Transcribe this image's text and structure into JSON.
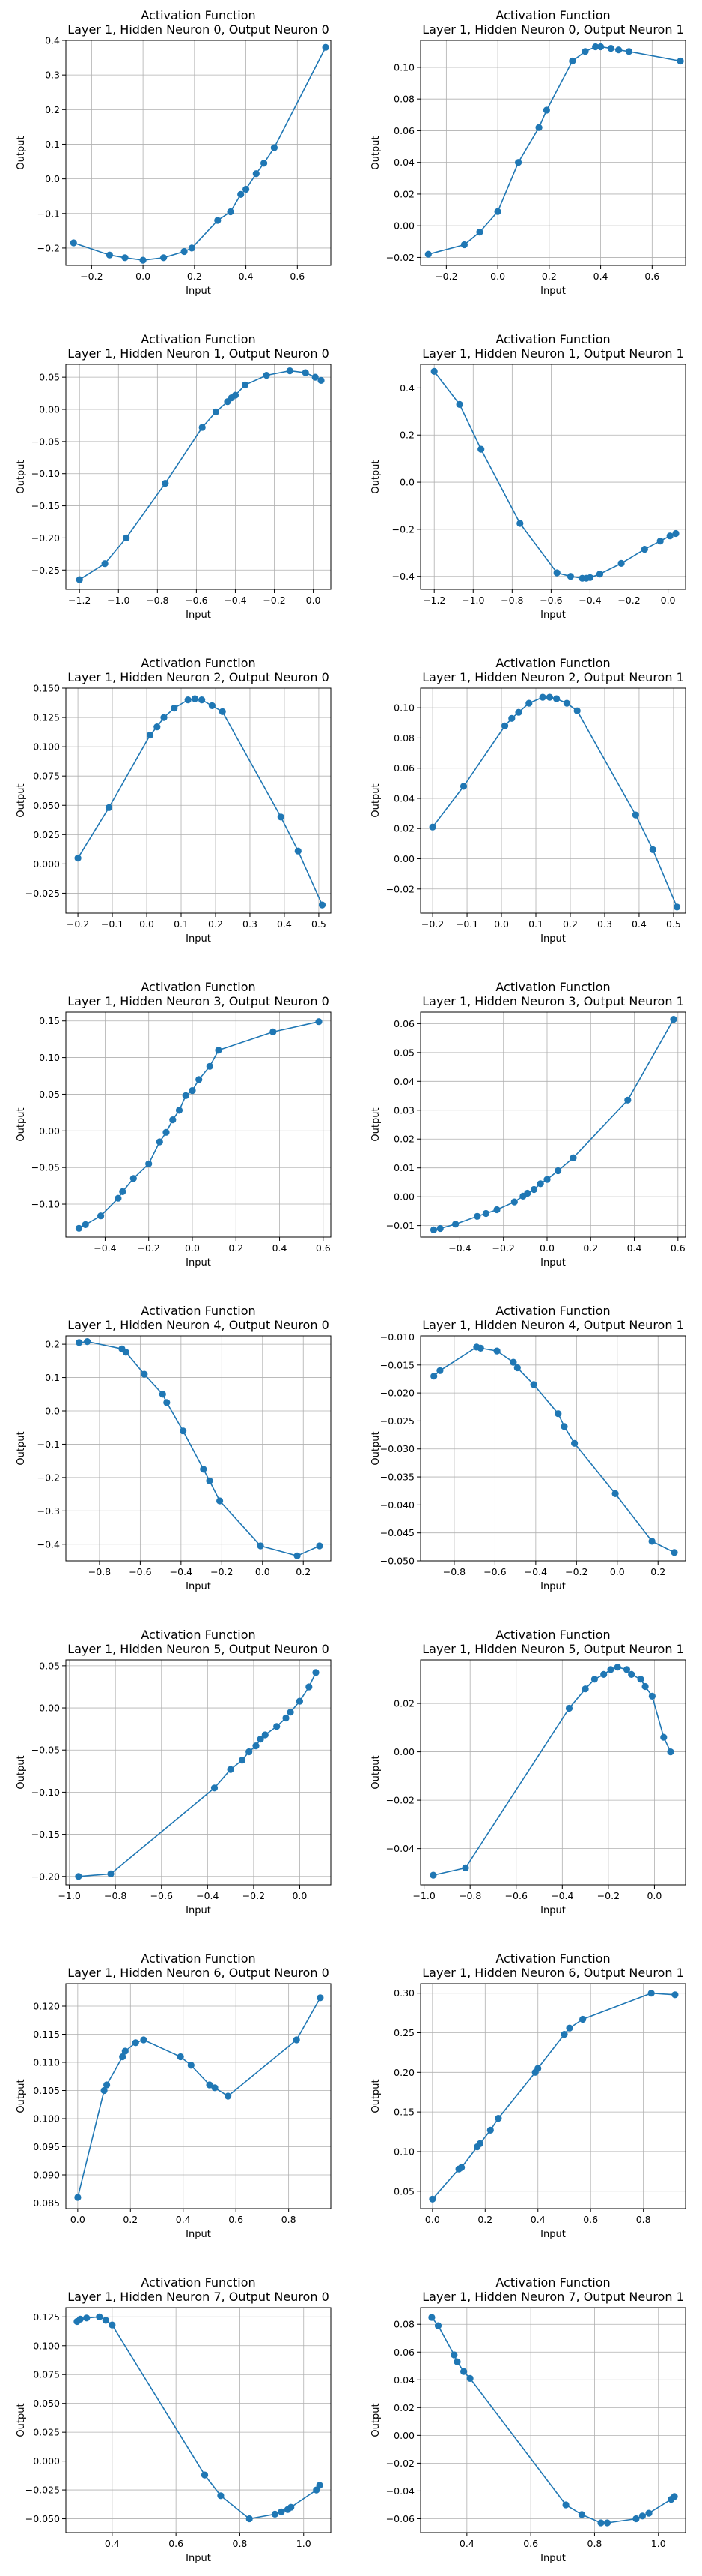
{
  "style": {
    "line_color": "#1f77b4",
    "grid_color": "#b0b0b0",
    "axis_color": "#000000"
  },
  "chart_data": [
    {
      "type": "line",
      "title": "Activation Function\nLayer 1, Hidden Neuron 0, Output Neuron 0",
      "xlabel": "Input",
      "ylabel": "Output",
      "xlim": [
        -0.3,
        0.73
      ],
      "ylim": [
        -0.25,
        0.4
      ],
      "xticks": [
        -0.2,
        0.0,
        0.2,
        0.4,
        0.6
      ],
      "yticks": [
        -0.2,
        -0.1,
        0.0,
        0.1,
        0.2,
        0.3,
        0.4
      ],
      "x": [
        -0.27,
        -0.13,
        -0.07,
        0.0,
        0.08,
        0.16,
        0.19,
        0.29,
        0.34,
        0.38,
        0.4,
        0.44,
        0.47,
        0.51,
        0.71
      ],
      "y": [
        -0.185,
        -0.22,
        -0.228,
        -0.235,
        -0.228,
        -0.21,
        -0.2,
        -0.12,
        -0.095,
        -0.045,
        -0.03,
        0.015,
        0.045,
        0.09,
        0.38
      ]
    },
    {
      "type": "line",
      "title": "Activation Function\nLayer 1, Hidden Neuron 0, Output Neuron 1",
      "xlabel": "Input",
      "ylabel": "Output",
      "xlim": [
        -0.3,
        0.73
      ],
      "ylim": [
        -0.025,
        0.117
      ],
      "xticks": [
        -0.2,
        0.0,
        0.2,
        0.4,
        0.6
      ],
      "yticks": [
        -0.02,
        0.0,
        0.02,
        0.04,
        0.06,
        0.08,
        0.1
      ],
      "x": [
        -0.27,
        -0.13,
        -0.07,
        0.0,
        0.08,
        0.16,
        0.19,
        0.29,
        0.34,
        0.38,
        0.4,
        0.44,
        0.47,
        0.51,
        0.71
      ],
      "y": [
        -0.018,
        -0.012,
        -0.004,
        0.009,
        0.04,
        0.062,
        0.073,
        0.104,
        0.11,
        0.113,
        0.113,
        0.112,
        0.111,
        0.11,
        0.104
      ]
    },
    {
      "type": "line",
      "title": "Activation Function\nLayer 1, Hidden Neuron 1, Output Neuron 0",
      "xlabel": "Input",
      "ylabel": "Output",
      "xlim": [
        -1.27,
        0.09
      ],
      "ylim": [
        -0.28,
        0.07
      ],
      "xticks": [
        -1.2,
        -1.0,
        -0.8,
        -0.6,
        -0.4,
        -0.2,
        0.0
      ],
      "yticks": [
        -0.25,
        -0.2,
        -0.15,
        -0.1,
        -0.05,
        0.0,
        0.05
      ],
      "x": [
        -1.2,
        -1.07,
        -0.96,
        -0.76,
        -0.57,
        -0.5,
        -0.44,
        -0.42,
        -0.4,
        -0.35,
        -0.24,
        -0.12,
        -0.04,
        0.01,
        0.04
      ],
      "y": [
        -0.265,
        -0.24,
        -0.2,
        -0.115,
        -0.028,
        -0.004,
        0.012,
        0.018,
        0.022,
        0.038,
        0.053,
        0.06,
        0.057,
        0.05,
        0.045
      ]
    },
    {
      "type": "line",
      "title": "Activation Function\nLayer 1, Hidden Neuron 1, Output Neuron 1",
      "xlabel": "Input",
      "ylabel": "Output",
      "xlim": [
        -1.27,
        0.09
      ],
      "ylim": [
        -0.455,
        0.5
      ],
      "xticks": [
        -1.2,
        -1.0,
        -0.8,
        -0.6,
        -0.4,
        -0.2,
        0.0
      ],
      "yticks": [
        -0.4,
        -0.2,
        0.0,
        0.2,
        0.4
      ],
      "x": [
        -1.2,
        -1.07,
        -0.96,
        -0.76,
        -0.57,
        -0.5,
        -0.44,
        -0.42,
        -0.4,
        -0.35,
        -0.24,
        -0.12,
        -0.04,
        0.01,
        0.04
      ],
      "y": [
        0.47,
        0.33,
        0.14,
        -0.175,
        -0.385,
        -0.4,
        -0.408,
        -0.408,
        -0.405,
        -0.39,
        -0.345,
        -0.285,
        -0.25,
        -0.228,
        -0.218
      ]
    },
    {
      "type": "line",
      "title": "Activation Function\nLayer 1, Hidden Neuron 2, Output Neuron 0",
      "xlabel": "Input",
      "ylabel": "Output",
      "xlim": [
        -0.235,
        0.535
      ],
      "ylim": [
        -0.042,
        0.15
      ],
      "xticks": [
        -0.2,
        -0.1,
        0.0,
        0.1,
        0.2,
        0.3,
        0.4,
        0.5
      ],
      "yticks": [
        -0.025,
        0.0,
        0.025,
        0.05,
        0.075,
        0.1,
        0.125,
        0.15
      ],
      "x": [
        -0.2,
        -0.11,
        0.01,
        0.03,
        0.05,
        0.08,
        0.12,
        0.14,
        0.16,
        0.19,
        0.22,
        0.39,
        0.44,
        0.51
      ],
      "y": [
        0.005,
        0.048,
        0.11,
        0.117,
        0.125,
        0.133,
        0.14,
        0.141,
        0.14,
        0.135,
        0.13,
        0.04,
        0.011,
        -0.035
      ]
    },
    {
      "type": "line",
      "title": "Activation Function\nLayer 1, Hidden Neuron 2, Output Neuron 1",
      "xlabel": "Input",
      "ylabel": "Output",
      "xlim": [
        -0.235,
        0.535
      ],
      "ylim": [
        -0.036,
        0.113
      ],
      "xticks": [
        -0.2,
        -0.1,
        0.0,
        0.1,
        0.2,
        0.3,
        0.4,
        0.5
      ],
      "yticks": [
        -0.02,
        0.0,
        0.02,
        0.04,
        0.06,
        0.08,
        0.1
      ],
      "x": [
        -0.2,
        -0.11,
        0.01,
        0.03,
        0.05,
        0.08,
        0.12,
        0.14,
        0.16,
        0.19,
        0.22,
        0.39,
        0.44,
        0.51
      ],
      "y": [
        0.021,
        0.048,
        0.088,
        0.093,
        0.097,
        0.103,
        0.107,
        0.107,
        0.106,
        0.103,
        0.098,
        0.029,
        0.006,
        -0.032
      ]
    },
    {
      "type": "line",
      "title": "Activation Function\nLayer 1, Hidden Neuron 3, Output Neuron 0",
      "xlabel": "Input",
      "ylabel": "Output",
      "xlim": [
        -0.58,
        0.635
      ],
      "ylim": [
        -0.145,
        0.162
      ],
      "xticks": [
        -0.4,
        -0.2,
        0.0,
        0.2,
        0.4,
        0.6
      ],
      "yticks": [
        -0.1,
        -0.05,
        0.0,
        0.05,
        0.1,
        0.15
      ],
      "x": [
        -0.52,
        -0.49,
        -0.42,
        -0.34,
        -0.32,
        -0.27,
        -0.2,
        -0.15,
        -0.12,
        -0.09,
        -0.06,
        -0.03,
        0.0,
        0.03,
        0.08,
        0.12,
        0.37,
        0.58
      ],
      "y": [
        -0.133,
        -0.128,
        -0.116,
        -0.092,
        -0.083,
        -0.065,
        -0.045,
        -0.015,
        -0.002,
        0.015,
        0.028,
        0.048,
        0.055,
        0.07,
        0.088,
        0.11,
        0.135,
        0.149
      ]
    },
    {
      "type": "line",
      "title": "Activation Function\nLayer 1, Hidden Neuron 3, Output Neuron 1",
      "xlabel": "Input",
      "ylabel": "Output",
      "xlim": [
        -0.58,
        0.635
      ],
      "ylim": [
        -0.014,
        0.064
      ],
      "xticks": [
        -0.4,
        -0.2,
        0.0,
        0.2,
        0.4,
        0.6
      ],
      "yticks": [
        -0.01,
        0.0,
        0.01,
        0.02,
        0.03,
        0.04,
        0.05,
        0.06
      ],
      "x": [
        -0.52,
        -0.49,
        -0.42,
        -0.32,
        -0.28,
        -0.23,
        -0.15,
        -0.11,
        -0.09,
        -0.06,
        -0.03,
        0.0,
        0.05,
        0.12,
        0.37,
        0.58
      ],
      "y": [
        -0.0115,
        -0.011,
        -0.0095,
        -0.0068,
        -0.0058,
        -0.0045,
        -0.0018,
        0.0002,
        0.0012,
        0.0025,
        0.0045,
        0.006,
        0.009,
        0.0135,
        0.0335,
        0.0615
      ]
    },
    {
      "type": "line",
      "title": "Activation Function\nLayer 1, Hidden Neuron 4, Output Neuron 0",
      "xlabel": "Input",
      "ylabel": "Output",
      "xlim": [
        -0.965,
        0.335
      ],
      "ylim": [
        -0.45,
        0.225
      ],
      "xticks": [
        -0.8,
        -0.6,
        -0.4,
        -0.2,
        0.0,
        0.2
      ],
      "yticks": [
        -0.4,
        -0.3,
        -0.2,
        -0.1,
        0.0,
        0.1,
        0.2
      ],
      "x": [
        -0.9,
        -0.86,
        -0.69,
        -0.67,
        -0.58,
        -0.49,
        -0.47,
        -0.39,
        -0.29,
        -0.26,
        -0.21,
        -0.01,
        0.17,
        0.28
      ],
      "y": [
        0.205,
        0.208,
        0.186,
        0.176,
        0.11,
        0.05,
        0.025,
        -0.06,
        -0.175,
        -0.21,
        -0.27,
        -0.405,
        -0.435,
        -0.405
      ]
    },
    {
      "type": "line",
      "title": "Activation Function\nLayer 1, Hidden Neuron 4, Output Neuron 1",
      "xlabel": "Input",
      "ylabel": "Output",
      "xlim": [
        -0.965,
        0.335
      ],
      "ylim": [
        -0.05,
        -0.0098
      ],
      "xticks": [
        -0.8,
        -0.6,
        -0.4,
        -0.2,
        0.0,
        0.2
      ],
      "yticks": [
        -0.05,
        -0.045,
        -0.04,
        -0.035,
        -0.03,
        -0.025,
        -0.02,
        -0.015,
        -0.01
      ],
      "x": [
        -0.9,
        -0.87,
        -0.69,
        -0.67,
        -0.59,
        -0.51,
        -0.49,
        -0.41,
        -0.29,
        -0.26,
        -0.21,
        -0.01,
        0.17,
        0.28
      ],
      "y": [
        -0.017,
        -0.016,
        -0.0118,
        -0.012,
        -0.0125,
        -0.0145,
        -0.0155,
        -0.0185,
        -0.0237,
        -0.026,
        -0.029,
        -0.038,
        -0.0465,
        -0.0485
      ]
    },
    {
      "type": "line",
      "title": "Activation Function\nLayer 1, Hidden Neuron 5, Output Neuron 0",
      "xlabel": "Input",
      "ylabel": "Output",
      "xlim": [
        -1.015,
        0.135
      ],
      "ylim": [
        -0.21,
        0.057
      ],
      "xticks": [
        -1.0,
        -0.8,
        -0.6,
        -0.4,
        -0.2,
        0.0
      ],
      "yticks": [
        -0.2,
        -0.15,
        -0.1,
        -0.05,
        0.0,
        0.05
      ],
      "x": [
        -0.96,
        -0.82,
        -0.37,
        -0.3,
        -0.25,
        -0.22,
        -0.19,
        -0.17,
        -0.15,
        -0.1,
        -0.06,
        -0.04,
        0.0,
        0.04,
        0.07
      ],
      "y": [
        -0.2,
        -0.197,
        -0.095,
        -0.073,
        -0.062,
        -0.052,
        -0.045,
        -0.037,
        -0.032,
        -0.022,
        -0.012,
        -0.005,
        0.008,
        0.025,
        0.042
      ]
    },
    {
      "type": "line",
      "title": "Activation Function\nLayer 1, Hidden Neuron 5, Output Neuron 1",
      "xlabel": "Input",
      "ylabel": "Output",
      "xlim": [
        -1.015,
        0.135
      ],
      "ylim": [
        -0.055,
        0.038
      ],
      "xticks": [
        -1.0,
        -0.8,
        -0.6,
        -0.4,
        -0.2,
        0.0
      ],
      "yticks": [
        -0.04,
        -0.02,
        0.0,
        0.02
      ],
      "x": [
        -0.96,
        -0.82,
        -0.37,
        -0.3,
        -0.26,
        -0.22,
        -0.19,
        -0.16,
        -0.12,
        -0.1,
        -0.06,
        -0.04,
        -0.01,
        0.04,
        0.07
      ],
      "y": [
        -0.051,
        -0.048,
        0.018,
        0.026,
        0.03,
        0.032,
        0.034,
        0.035,
        0.034,
        0.032,
        0.03,
        0.027,
        0.023,
        0.006,
        0.0
      ]
    },
    {
      "type": "line",
      "title": "Activation Function\nLayer 1, Hidden Neuron 6, Output Neuron 0",
      "xlabel": "Input",
      "ylabel": "Output",
      "xlim": [
        -0.045,
        0.96
      ],
      "ylim": [
        0.084,
        0.124
      ],
      "xticks": [
        0.0,
        0.2,
        0.4,
        0.6,
        0.8
      ],
      "yticks": [
        0.085,
        0.09,
        0.095,
        0.1,
        0.105,
        0.11,
        0.115,
        0.12
      ],
      "x": [
        0.0,
        0.1,
        0.11,
        0.17,
        0.18,
        0.22,
        0.25,
        0.39,
        0.43,
        0.5,
        0.52,
        0.57,
        0.83,
        0.92
      ],
      "y": [
        0.086,
        0.105,
        0.106,
        0.111,
        0.112,
        0.1135,
        0.114,
        0.111,
        0.1095,
        0.106,
        0.1055,
        0.104,
        0.114,
        0.1215
      ]
    },
    {
      "type": "line",
      "title": "Activation Function\nLayer 1, Hidden Neuron 6, Output Neuron 1",
      "xlabel": "Input",
      "ylabel": "Output",
      "xlim": [
        -0.045,
        0.96
      ],
      "ylim": [
        0.028,
        0.312
      ],
      "xticks": [
        0.0,
        0.2,
        0.4,
        0.6,
        0.8
      ],
      "yticks": [
        0.05,
        0.1,
        0.15,
        0.2,
        0.25,
        0.3
      ],
      "x": [
        0.0,
        0.1,
        0.11,
        0.17,
        0.18,
        0.22,
        0.25,
        0.39,
        0.4,
        0.5,
        0.52,
        0.57,
        0.83,
        0.92
      ],
      "y": [
        0.04,
        0.078,
        0.08,
        0.106,
        0.11,
        0.127,
        0.142,
        0.2,
        0.205,
        0.248,
        0.256,
        0.267,
        0.3,
        0.298
      ]
    },
    {
      "type": "line",
      "title": "Activation Function\nLayer 1, Hidden Neuron 7, Output Neuron 0",
      "xlabel": "Input",
      "ylabel": "Output",
      "xlim": [
        0.255,
        1.085
      ],
      "ylim": [
        -0.062,
        0.133
      ],
      "xticks": [
        0.4,
        0.6,
        0.8,
        1.0
      ],
      "yticks": [
        -0.05,
        -0.025,
        0.0,
        0.025,
        0.05,
        0.075,
        0.1,
        0.125
      ],
      "x": [
        0.29,
        0.3,
        0.32,
        0.36,
        0.38,
        0.4,
        0.69,
        0.74,
        0.83,
        0.91,
        0.93,
        0.95,
        0.96,
        1.04,
        1.05
      ],
      "y": [
        0.121,
        0.123,
        0.124,
        0.125,
        0.122,
        0.118,
        -0.012,
        -0.03,
        -0.05,
        -0.046,
        -0.044,
        -0.042,
        -0.04,
        -0.025,
        -0.021
      ]
    },
    {
      "type": "line",
      "title": "Activation Function\nLayer 1, Hidden Neuron 7, Output Neuron 1",
      "xlabel": "Input",
      "ylabel": "Output",
      "xlim": [
        0.255,
        1.085
      ],
      "ylim": [
        -0.07,
        0.092
      ],
      "xticks": [
        0.4,
        0.6,
        0.8,
        1.0
      ],
      "yticks": [
        -0.06,
        -0.04,
        -0.02,
        0.0,
        0.02,
        0.04,
        0.06,
        0.08
      ],
      "x": [
        0.29,
        0.31,
        0.36,
        0.37,
        0.39,
        0.41,
        0.71,
        0.76,
        0.82,
        0.84,
        0.93,
        0.95,
        0.97,
        1.04,
        1.05
      ],
      "y": [
        0.085,
        0.079,
        0.058,
        0.053,
        0.046,
        0.041,
        -0.05,
        -0.057,
        -0.063,
        -0.063,
        -0.06,
        -0.058,
        -0.056,
        -0.046,
        -0.044
      ]
    }
  ]
}
